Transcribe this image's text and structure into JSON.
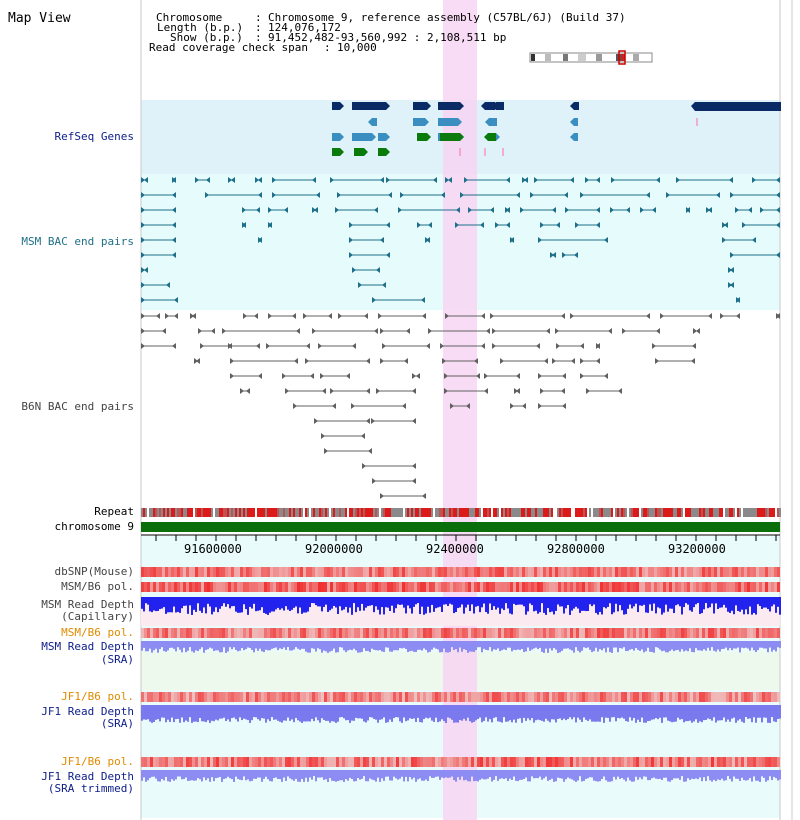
{
  "header": {
    "title": "Map View",
    "chrom_label": "Chromosome",
    "chrom_value": "Chromosome 9, reference assembly (C57BL/6J) (Build 37)",
    "length_label": "Length (b.p.)",
    "length_value": "124,076,172",
    "show_label": "Show (b.p.)",
    "show_value": "91,452,482-93,560,992 : 2,108,511 bp",
    "span_label": "Read coverage check span",
    "span_value": "10,000",
    "sep": ":"
  },
  "tracks": {
    "refseq": "RefSeq Genes",
    "msm_bac": "MSM BAC end pairs",
    "b6n_bac": "B6N BAC end pairs",
    "repeat": "Repeat",
    "chromosome": "chromosome 9",
    "dbsnp": "dbSNP(Mouse)",
    "msm_b6_pol_1": "MSM/B6 pol.",
    "msm_depth_cap_1": "MSM Read Depth",
    "msm_depth_cap_2": "(Capillary)",
    "msm_b6_pol_2": "MSM/B6 pol.",
    "msm_depth_sra_1": "MSM Read Depth",
    "msm_depth_sra_2": "(SRA)",
    "jf1_b6_pol_1": "JF1/B6 pol.",
    "jf1_depth_sra_1": "JF1 Read Depth",
    "jf1_depth_sra_2": "(SRA)",
    "jf1_b6_pol_2": "JF1/B6 pol.",
    "jf1_depth_trim_1": "JF1 Read Depth",
    "jf1_depth_trim_2": "(SRA trimmed)"
  },
  "axis": {
    "ticks": [
      "91600000",
      "92000000",
      "92400000",
      "92800000",
      "93200000"
    ]
  },
  "colors": {
    "refseq_bg": "#dff2fa",
    "bac_bg": "#e6fbfb",
    "highlight": "#f7d5f2",
    "refseq_navy": "#0a2a66",
    "refseq_teal": "#3a8fc0",
    "refseq_green": "#0a7a0a",
    "msm_bac_line": "#1d6f8a",
    "b6n_bac_line": "#606060",
    "chromosome": "#0a6e0a",
    "label_navy": "#10208c",
    "label_orange": "#e08a00",
    "label_teal": "#1f6f86"
  }
}
